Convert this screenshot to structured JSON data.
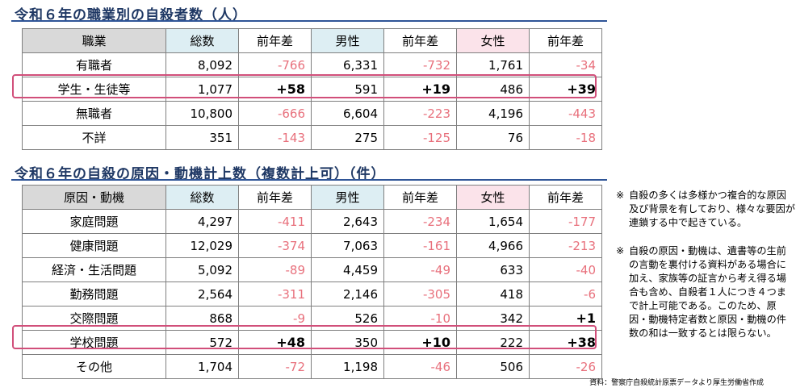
{
  "table1": {
    "title": "令和６年の職業別の自殺者数（人）",
    "headers": [
      "職業",
      "総数",
      "前年差",
      "男性",
      "前年差",
      "女性",
      "前年差"
    ],
    "rows": [
      {
        "name": "有職者",
        "total": "8,092",
        "total_diff": "-766",
        "male": "6,331",
        "male_diff": "-732",
        "female": "1,761",
        "female_diff": "-34"
      },
      {
        "name": "学生・生徒等",
        "total": "1,077",
        "total_diff": "+58",
        "male": "591",
        "male_diff": "+19",
        "female": "486",
        "female_diff": "+39"
      },
      {
        "name": "無職者",
        "total": "10,800",
        "total_diff": "-666",
        "male": "6,604",
        "male_diff": "-223",
        "female": "4,196",
        "female_diff": "-443"
      },
      {
        "name": "不詳",
        "total": "351",
        "total_diff": "-143",
        "male": "275",
        "male_diff": "-125",
        "female": "76",
        "female_diff": "-18"
      }
    ]
  },
  "table2": {
    "title": "令和６年の自殺の原因・動機計上数（複数計上可）（件）",
    "headers": [
      "原因・動機",
      "総数",
      "前年差",
      "男性",
      "前年差",
      "女性",
      "前年差"
    ],
    "rows": [
      {
        "name": "家庭問題",
        "total": "4,297",
        "total_diff": "-411",
        "male": "2,643",
        "male_diff": "-234",
        "female": "1,654",
        "female_diff": "-177"
      },
      {
        "name": "健康問題",
        "total": "12,029",
        "total_diff": "-374",
        "male": "7,063",
        "male_diff": "-161",
        "female": "4,966",
        "female_diff": "-213"
      },
      {
        "name": "経済・生活問題",
        "total": "5,092",
        "total_diff": "-89",
        "male": "4,459",
        "male_diff": "-49",
        "female": "633",
        "female_diff": "-40"
      },
      {
        "name": "勤務問題",
        "total": "2,564",
        "total_diff": "-311",
        "male": "2,146",
        "male_diff": "-305",
        "female": "418",
        "female_diff": "-6"
      },
      {
        "name": "交際問題",
        "total": "868",
        "total_diff": "-9",
        "male": "526",
        "male_diff": "-10",
        "female": "342",
        "female_diff": "+1"
      },
      {
        "name": "学校問題",
        "total": "572",
        "total_diff": "+48",
        "male": "350",
        "male_diff": "+10",
        "female": "222",
        "female_diff": "+38"
      },
      {
        "name": "その他",
        "total": "1,704",
        "total_diff": "-72",
        "male": "1,198",
        "male_diff": "-46",
        "female": "506",
        "female_diff": "-26"
      }
    ]
  },
  "notes": [
    {
      "mark": "※",
      "text": "自殺の多くは多様かつ複合的な原因及び背景を有しており、様々な要因が連鎖する中で起きている。"
    },
    {
      "mark": "※",
      "text": "自殺の原因・動機は、遺書等の生前の言動を裏付ける資料がある場合に加え、家族等の証言から考え得る場合も含め、自殺者１人につき４つまで計上可能である。このため、原因・動機特定者数と原因・動機の件数の和は一致するとは限らない。"
    }
  ],
  "source": "資料：警察庁自殺統計原票データより厚生労働省作成",
  "colors": {
    "title": "#1f3864",
    "rule": "#2f5597",
    "negative": "#e8707c",
    "highlight_border": "#d14f7a",
    "header_male_total": "#ddeef3",
    "header_female": "#fbe3ea",
    "header_label": "#d9d9d9"
  }
}
